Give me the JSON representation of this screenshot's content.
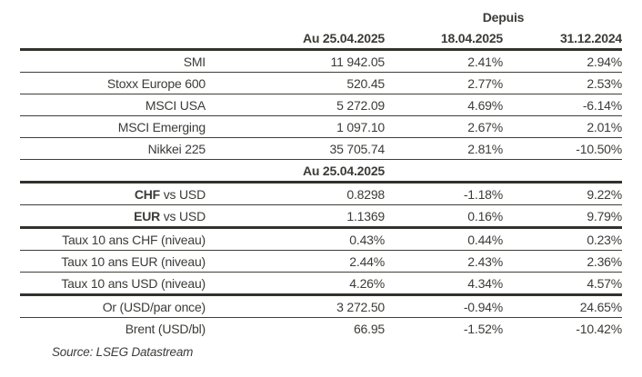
{
  "page": {
    "background": "#ffffff",
    "text_color": "#3b3b38",
    "thin_rule_color": "#3e3e39",
    "thick_rule_color": "#32322d"
  },
  "chart_data": {
    "type": "table",
    "group_header": "Depuis",
    "column_headers": [
      "Au 25.04.2025",
      "18.04.2025",
      "31.12.2024"
    ],
    "rows": [
      {
        "label": "SMI",
        "values": [
          "11 942.05",
          "2.41%",
          "2.94%"
        ],
        "rule": "thin"
      },
      {
        "label": "Stoxx Europe 600",
        "values": [
          "520.45",
          "2.77%",
          "2.53%"
        ],
        "rule": "thin"
      },
      {
        "label": "MSCI USA",
        "values": [
          "5 272.09",
          "4.69%",
          "-6.14%"
        ],
        "rule": "thin"
      },
      {
        "label": "MSCI Emerging",
        "values": [
          "1 097.10",
          "2.67%",
          "2.01%"
        ],
        "rule": "thin"
      },
      {
        "label": "Nikkei 225",
        "values": [
          "35 705.74",
          "2.81%",
          "-10.50%"
        ],
        "rule": "thin"
      },
      {
        "section": true,
        "label": "",
        "values": [
          "Au 25.04.2025",
          "",
          ""
        ],
        "rule": "thick"
      },
      {
        "label_bold": "CHF",
        "label": " vs USD",
        "values": [
          "0.8298",
          "-1.18%",
          "9.22%"
        ],
        "rule": "thin"
      },
      {
        "label_bold": "EUR",
        "label": " vs USD",
        "values": [
          "1.1369",
          "0.16%",
          "9.79%"
        ],
        "rule": "thick"
      },
      {
        "label": "Taux 10 ans CHF (niveau)",
        "values": [
          "0.43%",
          "0.44%",
          "0.23%"
        ],
        "rule": "thin"
      },
      {
        "label": "Taux 10 ans EUR (niveau)",
        "values": [
          "2.44%",
          "2.43%",
          "2.36%"
        ],
        "rule": "thin"
      },
      {
        "label": "Taux 10 ans USD (niveau)",
        "values": [
          "4.26%",
          "4.34%",
          "4.57%"
        ],
        "rule": "thick"
      },
      {
        "label": "Or (USD/par once)",
        "values": [
          "3 272.50",
          "-0.94%",
          "24.65%"
        ],
        "rule": "thin"
      },
      {
        "label": "Brent (USD/bl)",
        "values": [
          "66.95",
          "-1.52%",
          "-10.42%"
        ],
        "rule": "none"
      }
    ],
    "source": "Source: LSEG Datastream"
  }
}
